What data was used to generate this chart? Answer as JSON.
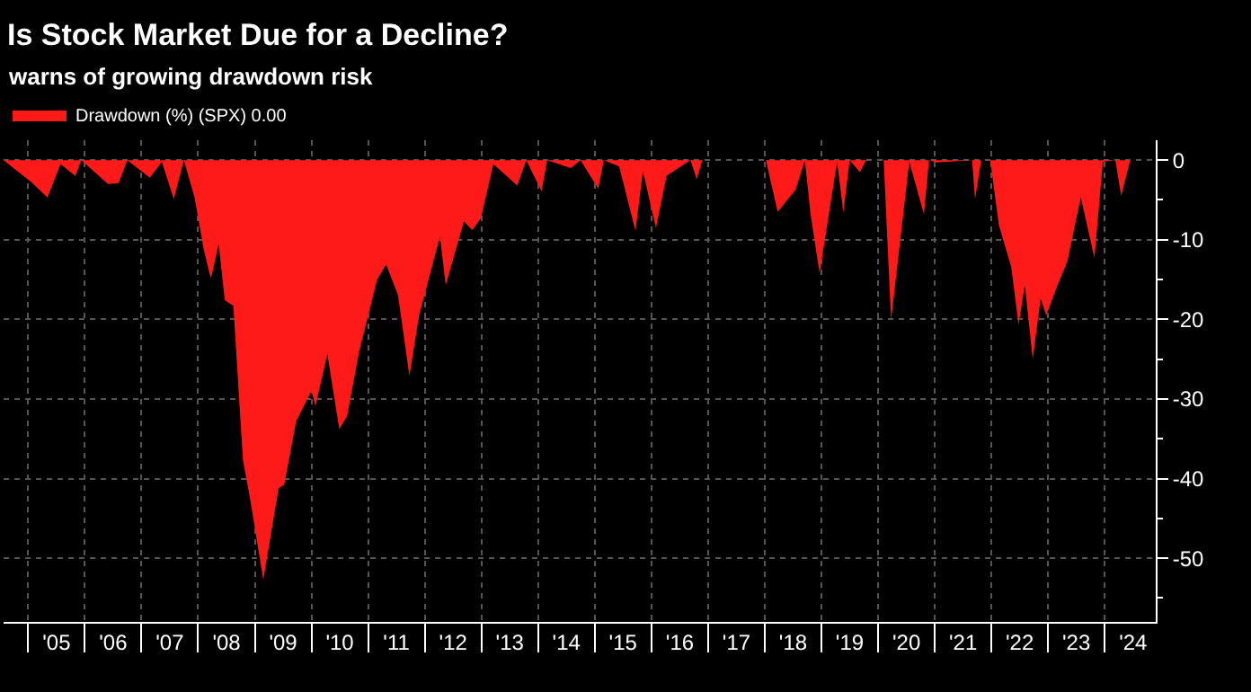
{
  "chart_data": {
    "type": "area",
    "title": "Is Stock Market Due for a Decline?",
    "subtitle": "warns of growing drawdown risk",
    "x": [
      "2004-07-26",
      "2005-01-23",
      "2005-05-05",
      "2005-07-28",
      "2005-10-31",
      "2005-12-09",
      "2006-05-30",
      "2006-08-07",
      "2006-10-01",
      "2007-02-24",
      "2007-05-12",
      "2007-07-28",
      "2007-10-01",
      "2007-12-09",
      "2008-02-06",
      "2008-03-14",
      "2008-03-25",
      "2008-05-12",
      "2008-06-21",
      "2008-08-15",
      "2008-10-16",
      "2008-11-29",
      "2009-02-24",
      "2009-06-03",
      "2009-07-09",
      "2009-09-24",
      "2010-01-01",
      "2010-01-26",
      "2010-04-13",
      "2010-06-29",
      "2010-08-19",
      "2010-11-03",
      "2011-02-28",
      "2011-04-27",
      "2011-07-12",
      "2011-09-24",
      "2011-11-25",
      "2012-04-08",
      "2012-05-15",
      "2012-09-09",
      "2012-11-03",
      "2012-12-28",
      "2013-03-18",
      "2013-08-19",
      "2013-10-16",
      "2014-01-23",
      "2014-02-28",
      "2014-07-31",
      "2014-10-01",
      "2015-01-23",
      "2015-02-28",
      "2015-06-07",
      "2015-09-20",
      "2015-11-07",
      "2016-01-30",
      "2016-04-08",
      "2016-09-09",
      "2016-10-19",
      "2016-11-24",
      "2018-01-08",
      "2018-03-25",
      "2018-07-19",
      "2018-09-16",
      "2018-10-23",
      "2018-12-20",
      "2019-04-12",
      "2019-05-22",
      "2019-07-02",
      "2019-09-06",
      "2019-10-16",
      "2020-02-06",
      "2020-03-25",
      "2020-07-20",
      "2020-10-23",
      "2020-11-24",
      "2021-01-12",
      "2021-08-29",
      "2021-09-17",
      "2021-10-27",
      "2021-12-24",
      "2022-02-17",
      "2022-05-08",
      "2022-06-25",
      "2022-08-04",
      "2022-09-24",
      "2022-11-14",
      "2022-12-20",
      "2023-02-17",
      "2023-05-05",
      "2023-07-31",
      "2023-10-27",
      "2023-12-20",
      "2024-03-10",
      "2024-04-16",
      "2024-06-13"
    ],
    "series": [
      {
        "name": "Drawdown (%) (SPX) 0.00",
        "color": "#ff1a1a",
        "values": [
          0,
          -2.8,
          -4.7,
          -0.5,
          -2.0,
          0,
          -3.0,
          -2.9,
          0,
          -2.2,
          -0.2,
          -4.9,
          0,
          -4.7,
          -11.2,
          -14.2,
          -14.8,
          -10.5,
          -17.6,
          -18.3,
          -37.7,
          -42.3,
          -52.7,
          -41.2,
          -40.8,
          -32.8,
          -29,
          -30.9,
          -24.4,
          -33.8,
          -32.1,
          -24.1,
          -15,
          -13.1,
          -16.9,
          -27.1,
          -19.5,
          -9.6,
          -15.7,
          -7.7,
          -8.8,
          -7.3,
          -0.5,
          -3.2,
          0,
          -3.9,
          0,
          -1,
          0,
          -3.6,
          0,
          -0.8,
          -8.9,
          -1.4,
          -8.5,
          -2,
          0,
          -2.4,
          0,
          0,
          -6.5,
          -3.7,
          0,
          -6.8,
          -14.2,
          -0.2,
          -6.6,
          0,
          -1.5,
          0,
          0,
          -20.1,
          -0.2,
          -6.8,
          0,
          -0.3,
          0,
          -4.9,
          0,
          0,
          -8.1,
          -13.4,
          -20.7,
          -15.7,
          -25,
          -17.4,
          -19.5,
          -16.4,
          -12.7,
          -4.7,
          -12.3,
          -0.2,
          0,
          -4.5,
          0
        ]
      }
    ],
    "xlim": [
      "2004-07-26",
      "2024-11-25"
    ],
    "xticks": [
      {
        "value": "2005-01-01",
        "label": null
      },
      {
        "value": "2005-07-02",
        "label": "'05"
      },
      {
        "value": "2006-01-01",
        "label": null
      },
      {
        "value": "2006-07-02",
        "label": "'06"
      },
      {
        "value": "2007-01-01",
        "label": null
      },
      {
        "value": "2007-07-02",
        "label": "'07"
      },
      {
        "value": "2008-01-01",
        "label": null
      },
      {
        "value": "2008-07-02",
        "label": "'08"
      },
      {
        "value": "2009-01-01",
        "label": null
      },
      {
        "value": "2009-07-02",
        "label": "'09"
      },
      {
        "value": "2010-01-01",
        "label": null
      },
      {
        "value": "2010-07-02",
        "label": "'10"
      },
      {
        "value": "2011-01-01",
        "label": null
      },
      {
        "value": "2011-07-02",
        "label": "'11"
      },
      {
        "value": "2012-01-01",
        "label": null
      },
      {
        "value": "2012-07-02",
        "label": "'12"
      },
      {
        "value": "2013-01-01",
        "label": null
      },
      {
        "value": "2013-07-02",
        "label": "'13"
      },
      {
        "value": "2014-01-01",
        "label": null
      },
      {
        "value": "2014-07-02",
        "label": "'14"
      },
      {
        "value": "2015-01-01",
        "label": null
      },
      {
        "value": "2015-07-02",
        "label": "'15"
      },
      {
        "value": "2016-01-01",
        "label": null
      },
      {
        "value": "2016-07-02",
        "label": "'16"
      },
      {
        "value": "2017-01-01",
        "label": null
      },
      {
        "value": "2017-07-02",
        "label": "'17"
      },
      {
        "value": "2018-01-01",
        "label": null
      },
      {
        "value": "2018-07-02",
        "label": "'18"
      },
      {
        "value": "2019-01-01",
        "label": null
      },
      {
        "value": "2019-07-02",
        "label": "'19"
      },
      {
        "value": "2020-01-01",
        "label": null
      },
      {
        "value": "2020-07-02",
        "label": "'20"
      },
      {
        "value": "2021-01-01",
        "label": null
      },
      {
        "value": "2021-07-02",
        "label": "'21"
      },
      {
        "value": "2022-01-01",
        "label": null
      },
      {
        "value": "2022-07-02",
        "label": "'22"
      },
      {
        "value": "2023-01-01",
        "label": null
      },
      {
        "value": "2023-07-02",
        "label": "'23"
      },
      {
        "value": "2024-01-01",
        "label": null
      },
      {
        "value": "2024-07-02",
        "label": "'24"
      }
    ],
    "ylim": [
      -58,
      2.5
    ],
    "yticks": [
      0,
      {
        "value": -5,
        "label": null
      },
      -10,
      {
        "value": -15,
        "label": null
      },
      -20,
      {
        "value": -25,
        "label": null
      },
      -30,
      {
        "value": -35,
        "label": null
      },
      -40,
      {
        "value": -45,
        "label": null
      },
      -50,
      {
        "value": -55,
        "label": null
      }
    ],
    "grid": true,
    "legend": "top left"
  }
}
